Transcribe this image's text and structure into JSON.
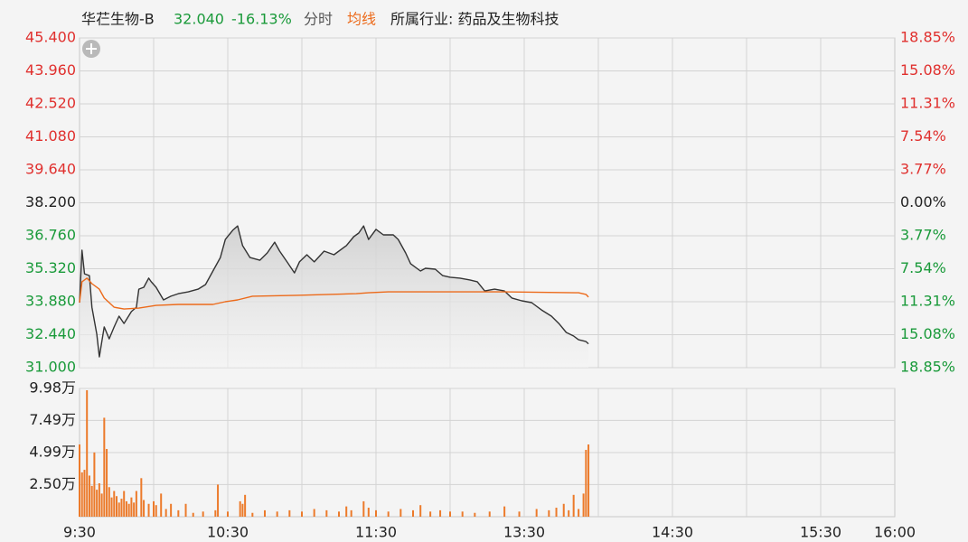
{
  "chart_data": {
    "type": "line",
    "title": "华芢生物-B",
    "price": "32.040",
    "change": "-16.13%",
    "industry": "所属行业: 药品及生物科技",
    "up_color": "#e0302e",
    "down_color": "#1a9a3a",
    "flat_color": "#222222",
    "grid": true,
    "xlim": [
      0,
      330
    ],
    "xticks": [
      {
        "value": 0,
        "label": "9:30"
      },
      {
        "value": 60,
        "label": "10:30"
      },
      {
        "value": 120,
        "label": "11:30"
      },
      {
        "value": 180,
        "label": "13:30"
      },
      {
        "value": 240,
        "label": "14:30"
      },
      {
        "value": 300,
        "label": "15:30"
      },
      {
        "value": 330,
        "label": "16:00"
      }
    ],
    "xgrid": [
      30,
      60,
      90,
      120,
      150,
      180,
      210,
      240,
      270,
      300
    ],
    "ylim": [
      31.0,
      45.4
    ],
    "yticks": [
      {
        "value": 45.4,
        "label": "45.400"
      },
      {
        "value": 43.96,
        "label": "43.960"
      },
      {
        "value": 42.52,
        "label": "42.520"
      },
      {
        "value": 41.08,
        "label": "41.080"
      },
      {
        "value": 39.64,
        "label": "39.640"
      },
      {
        "value": 38.2,
        "label": "38.200"
      },
      {
        "value": 36.76,
        "label": "36.760"
      },
      {
        "value": 35.32,
        "label": "35.320"
      },
      {
        "value": 33.88,
        "label": "33.880"
      },
      {
        "value": 32.44,
        "label": "32.440"
      },
      {
        "value": 31.0,
        "label": "31.000"
      }
    ],
    "y2lim": [
      -18.85,
      18.85
    ],
    "y2ticks": [
      {
        "value": 18.85,
        "label": "18.85%"
      },
      {
        "value": 15.08,
        "label": "15.08%"
      },
      {
        "value": 11.31,
        "label": "11.31%"
      },
      {
        "value": 7.54,
        "label": "7.54%"
      },
      {
        "value": 3.77,
        "label": "3.77%"
      },
      {
        "value": 0,
        "label": "0.00%"
      },
      {
        "value": -3.77,
        "label": "3.77%"
      },
      {
        "value": -7.54,
        "label": "7.54%"
      },
      {
        "value": -11.31,
        "label": "11.31%"
      },
      {
        "value": -15.08,
        "label": "15.08%"
      },
      {
        "value": -18.85,
        "label": "18.85%"
      }
    ],
    "series": [
      {
        "name": "分时",
        "color": "#333333",
        "legend_color": "#555555",
        "area": true,
        "x": [
          0,
          1,
          2,
          4,
          5,
          7,
          8,
          10,
          12,
          14,
          16,
          18,
          21,
          23,
          24,
          26,
          28,
          29,
          31,
          34,
          37,
          40,
          44,
          48,
          51,
          54,
          57,
          59,
          62,
          64,
          66,
          69,
          73,
          76,
          79,
          81,
          84,
          87,
          89,
          92,
          95,
          99,
          103,
          108,
          111,
          113,
          115,
          117,
          120,
          123,
          127,
          129,
          132,
          134,
          138,
          140,
          144,
          147,
          150,
          154,
          158,
          161,
          164,
          168,
          172,
          175,
          179,
          183,
          187,
          191,
          194,
          197,
          200,
          202,
          205,
          206
        ],
        "values": [
          33.84,
          36.13,
          35.1,
          35.02,
          33.64,
          32.46,
          31.47,
          32.78,
          32.26,
          32.78,
          33.25,
          32.93,
          33.45,
          33.64,
          34.43,
          34.51,
          34.91,
          34.75,
          34.51,
          33.96,
          34.12,
          34.23,
          34.31,
          34.43,
          34.63,
          35.22,
          35.81,
          36.6,
          37.0,
          37.19,
          36.33,
          35.81,
          35.69,
          36.01,
          36.48,
          36.09,
          35.62,
          35.14,
          35.62,
          35.93,
          35.62,
          36.09,
          35.93,
          36.33,
          36.72,
          36.88,
          37.19,
          36.6,
          37.04,
          36.8,
          36.8,
          36.6,
          36.01,
          35.54,
          35.22,
          35.34,
          35.3,
          35.02,
          34.95,
          34.91,
          34.83,
          34.75,
          34.35,
          34.43,
          34.35,
          34.04,
          33.92,
          33.84,
          33.52,
          33.25,
          32.93,
          32.54,
          32.38,
          32.22,
          32.14,
          32.04
        ]
      },
      {
        "name": "均线",
        "color": "#ec6a1a",
        "legend_color": "#ec6a1a",
        "area": false,
        "x": [
          0,
          1,
          3,
          5,
          8,
          10,
          14,
          18,
          24,
          31,
          40,
          54,
          59,
          64,
          70,
          88,
          112,
          117,
          125,
          161,
          172,
          202,
          205,
          206
        ],
        "values": [
          33.84,
          34.75,
          34.91,
          34.67,
          34.43,
          34.04,
          33.64,
          33.56,
          33.6,
          33.72,
          33.76,
          33.76,
          33.88,
          33.96,
          34.12,
          34.16,
          34.23,
          34.27,
          34.31,
          34.31,
          34.31,
          34.27,
          34.2,
          34.08
        ]
      }
    ],
    "volume": {
      "type": "bar",
      "color": "#ec7a2a",
      "ylim": [
        0,
        9.98
      ],
      "yticks": [
        {
          "value": 9.98,
          "label": "9.98万"
        },
        {
          "value": 7.49,
          "label": "7.49万"
        },
        {
          "value": 4.99,
          "label": "4.99万"
        },
        {
          "value": 2.5,
          "label": "2.50万"
        }
      ],
      "x": [
        0,
        1,
        2,
        3,
        4,
        5,
        6,
        7,
        8,
        9,
        10,
        11,
        12,
        13,
        14,
        15,
        16,
        17,
        18,
        19,
        20,
        21,
        22,
        23,
        25,
        26,
        28,
        30,
        31,
        33,
        35,
        37,
        40,
        43,
        46,
        50,
        55,
        56,
        60,
        65,
        66,
        67,
        70,
        75,
        80,
        85,
        90,
        95,
        100,
        105,
        108,
        110,
        115,
        117,
        120,
        125,
        130,
        135,
        138,
        142,
        146,
        150,
        155,
        160,
        166,
        172,
        178,
        185,
        190,
        193,
        196,
        198,
        200,
        202,
        204,
        205,
        206
      ],
      "values": [
        5.62,
        3.45,
        3.65,
        9.84,
        3.2,
        2.4,
        5.0,
        2.1,
        2.6,
        1.8,
        7.7,
        5.27,
        2.3,
        1.5,
        2.0,
        1.6,
        1.1,
        1.4,
        2.0,
        1.2,
        1.0,
        1.5,
        1.1,
        2.0,
        3.0,
        1.3,
        1.0,
        1.2,
        0.9,
        1.8,
        0.6,
        1.0,
        0.5,
        1.0,
        0.3,
        0.4,
        0.5,
        2.5,
        0.4,
        1.2,
        1.0,
        1.7,
        0.3,
        0.5,
        0.4,
        0.5,
        0.4,
        0.6,
        0.5,
        0.4,
        0.8,
        0.5,
        1.2,
        0.7,
        0.5,
        0.4,
        0.6,
        0.5,
        0.9,
        0.4,
        0.5,
        0.4,
        0.4,
        0.3,
        0.4,
        0.8,
        0.4,
        0.6,
        0.5,
        0.7,
        1.0,
        0.5,
        1.7,
        0.6,
        1.8,
        5.2,
        5.62
      ]
    }
  }
}
